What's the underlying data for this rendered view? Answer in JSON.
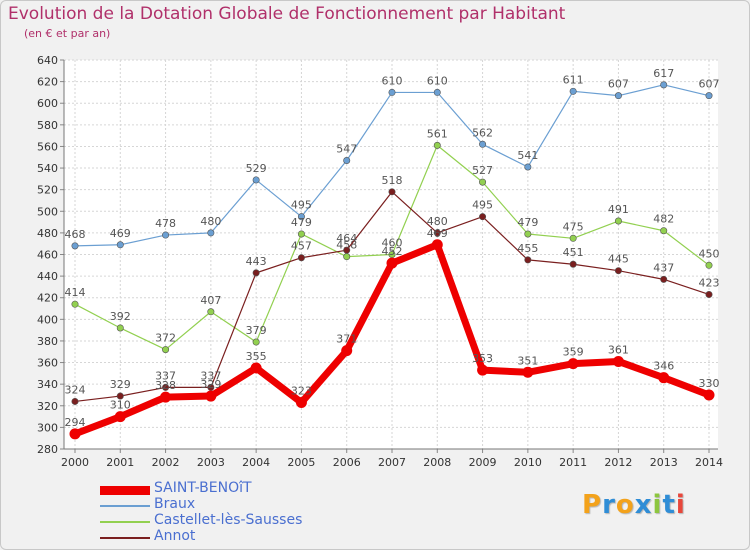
{
  "chart_data": {
    "type": "line",
    "title": "Evolution de la Dotation Globale de Fonctionnement par Habitant",
    "subtitle": "(en € et par an)",
    "x": [
      "2000",
      "2001",
      "2002",
      "2003",
      "2004",
      "2005",
      "2006",
      "2007",
      "2008",
      "2009",
      "2010",
      "2011",
      "2012",
      "2013",
      "2014"
    ],
    "ylim": [
      280,
      640
    ],
    "ytick_step": 20,
    "grid": true,
    "legend_position": "bottom-left",
    "series": [
      {
        "name": "SAINT-BENOîT",
        "color": "#ee0000",
        "values": [
          294,
          310,
          328,
          329,
          355,
          323,
          371,
          452,
          469,
          353,
          351,
          359,
          361,
          346,
          330
        ]
      },
      {
        "name": "Braux",
        "color": "#6b9fd2",
        "values": [
          468,
          469,
          478,
          480,
          529,
          495,
          547,
          610,
          610,
          562,
          541,
          611,
          607,
          617,
          607
        ]
      },
      {
        "name": "Castellet-lès-Sausses",
        "color": "#92d050",
        "values": [
          414,
          392,
          372,
          407,
          379,
          479,
          458,
          460,
          561,
          527,
          479,
          475,
          491,
          482,
          450
        ]
      },
      {
        "name": "Annot",
        "color": "#7a1f1f",
        "values": [
          324,
          329,
          337,
          337,
          443,
          457,
          464,
          518,
          480,
          495,
          455,
          451,
          445,
          437,
          423
        ]
      }
    ]
  },
  "logo": {
    "letters": [
      "P",
      "r",
      "o",
      "x",
      "i",
      "t",
      "i"
    ],
    "colors": [
      "#f3a21b",
      "#2f8dd6",
      "#f3a21b",
      "#2f8dd6",
      "#8dc63f",
      "#2f8dd6",
      "#e8473b"
    ]
  }
}
